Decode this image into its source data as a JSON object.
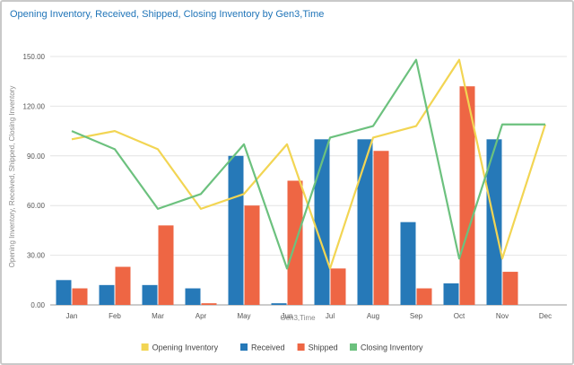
{
  "title": "Opening Inventory, Received, Shipped, Closing Inventory by Gen3,Time",
  "chart_data": {
    "type": "bar",
    "title": "Opening Inventory, Received, Shipped, Closing Inventory by Gen3,Time",
    "xlabel": "Gen3,Time",
    "ylabel": "Opening Inventory, Received, Shipped, Closing Inventory",
    "categories": [
      "Jan",
      "Feb",
      "Mar",
      "Apr",
      "May",
      "Jun",
      "Jul",
      "Aug",
      "Sep",
      "Oct",
      "Nov",
      "Dec"
    ],
    "ylim": [
      0,
      150
    ],
    "yticks": [
      0,
      30,
      60,
      90,
      120,
      150
    ],
    "ytick_labels": [
      "0.00",
      "30.00",
      "60.00",
      "90.00",
      "120.00",
      "150.00"
    ],
    "grid": true,
    "legend": "bottom",
    "series": [
      {
        "name": "Opening Inventory",
        "type": "line",
        "color": "#f2d553",
        "values": [
          100,
          105,
          94,
          58,
          67,
          97,
          22,
          101,
          108,
          148,
          28,
          109
        ]
      },
      {
        "name": "Received",
        "type": "bar",
        "color": "#2679b8",
        "values": [
          15,
          12,
          12,
          10,
          90,
          1,
          100,
          100,
          50,
          13,
          100,
          0
        ]
      },
      {
        "name": "Shipped",
        "type": "bar",
        "color": "#ee6644",
        "values": [
          10,
          23,
          48,
          1,
          60,
          75,
          22,
          93,
          10,
          132,
          20,
          0
        ]
      },
      {
        "name": "Closing Inventory",
        "type": "line",
        "color": "#6cc17e",
        "values": [
          105,
          94,
          58,
          67,
          97,
          22,
          101,
          108,
          148,
          28,
          109,
          109
        ]
      }
    ]
  }
}
